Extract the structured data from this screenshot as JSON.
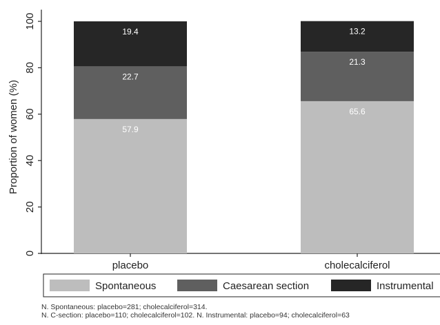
{
  "chart_data": {
    "type": "bar",
    "stacked": true,
    "categories": [
      "placebo",
      "cholecalciferol"
    ],
    "series": [
      {
        "name": "Spontaneous",
        "values": [
          57.9,
          65.6
        ],
        "labels": [
          "57.9",
          "65.6"
        ],
        "color": "#bdbdbd",
        "label_color": "#ffffff"
      },
      {
        "name": "Caesarean section",
        "values": [
          22.7,
          21.3
        ],
        "labels": [
          "22.7",
          "21.3"
        ],
        "color": "#5f5f5f",
        "label_color": "#ffffff"
      },
      {
        "name": "Instrumental",
        "values": [
          19.4,
          13.2
        ],
        "labels": [
          "19.4",
          "13.2"
        ],
        "color": "#262626",
        "label_color": "#ffffff"
      }
    ],
    "ylabel": "Proportion of women (%)",
    "xlabel": "",
    "title": "",
    "ylim": [
      0,
      100
    ],
    "yticks": [
      0,
      20,
      40,
      60,
      80,
      100
    ],
    "ytick_labels": [
      "0",
      "20",
      "40",
      "60",
      "80",
      "100"
    ],
    "grid": false,
    "legend_position": "bottom"
  },
  "notes": [
    "N. Spontaneous: placebo=281; cholecalciferol=314.",
    "N. C-section: placebo=110; cholecalciferol=102. N. Instrumental: placebo=94; cholecalciferol=63"
  ]
}
